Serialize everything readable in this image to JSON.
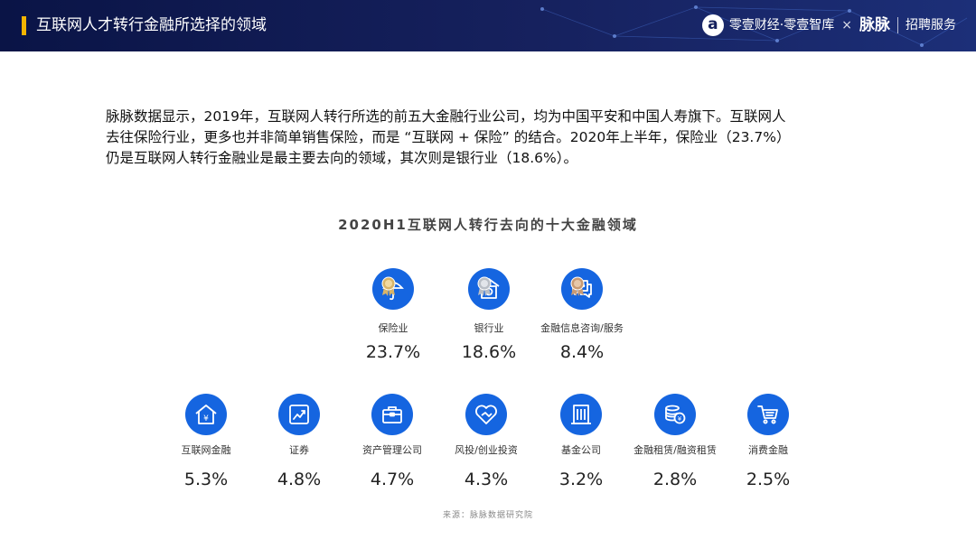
{
  "header": {
    "title": "互联网人才转行金融所选择的领域",
    "brand_text": "零壹财经·零壹智库",
    "brand_times": "×",
    "brand_maimai": "脉脉",
    "brand_service": "招聘服务"
  },
  "description": {
    "lines": [
      "脉脉数据显示，2019年，互联网人转行所选的前五大金融行业公司，均为中国平安和中国人寿旗下。互联网人",
      "去往保险行业，更多也并非简单销售保险，而是 “互联网 + 保险” 的结合。2020年上半年，保险业（23.7%）",
      "仍是互联网人转行金融业是最主要去向的领域，其次则是银行业（18.6%）。"
    ]
  },
  "chart_data": {
    "type": "table",
    "title": "2020H1互联网人转行去向的十大金融领域",
    "unit": "%",
    "categories": [
      "保险业",
      "银行业",
      "金融信息咨询/服务",
      "互联网金融",
      "证券",
      "资产管理公司",
      "风投/创业投资",
      "基金公司",
      "金融租赁/融资租赁",
      "消费金融"
    ],
    "values": [
      23.7,
      18.6,
      8.4,
      5.3,
      4.8,
      4.7,
      4.3,
      3.2,
      2.8,
      2.5
    ],
    "icons": [
      "umbrella-icon",
      "bank-icon",
      "chat-icon",
      "house-yen-icon",
      "stock-chart-icon",
      "briefcase-icon",
      "handshake-heart-icon",
      "building-icon",
      "coins-icon",
      "shopping-cart-icon"
    ],
    "medals": [
      "gold",
      "silver",
      "bronze"
    ],
    "source": "来源：脉脉数据研究院"
  },
  "colors": {
    "icon_bg": "#1565e0",
    "header_bg": "#16215e",
    "accent": "#f4b400",
    "gold": "#d9b467",
    "silver": "#b9bec6",
    "bronze": "#c89a73"
  }
}
